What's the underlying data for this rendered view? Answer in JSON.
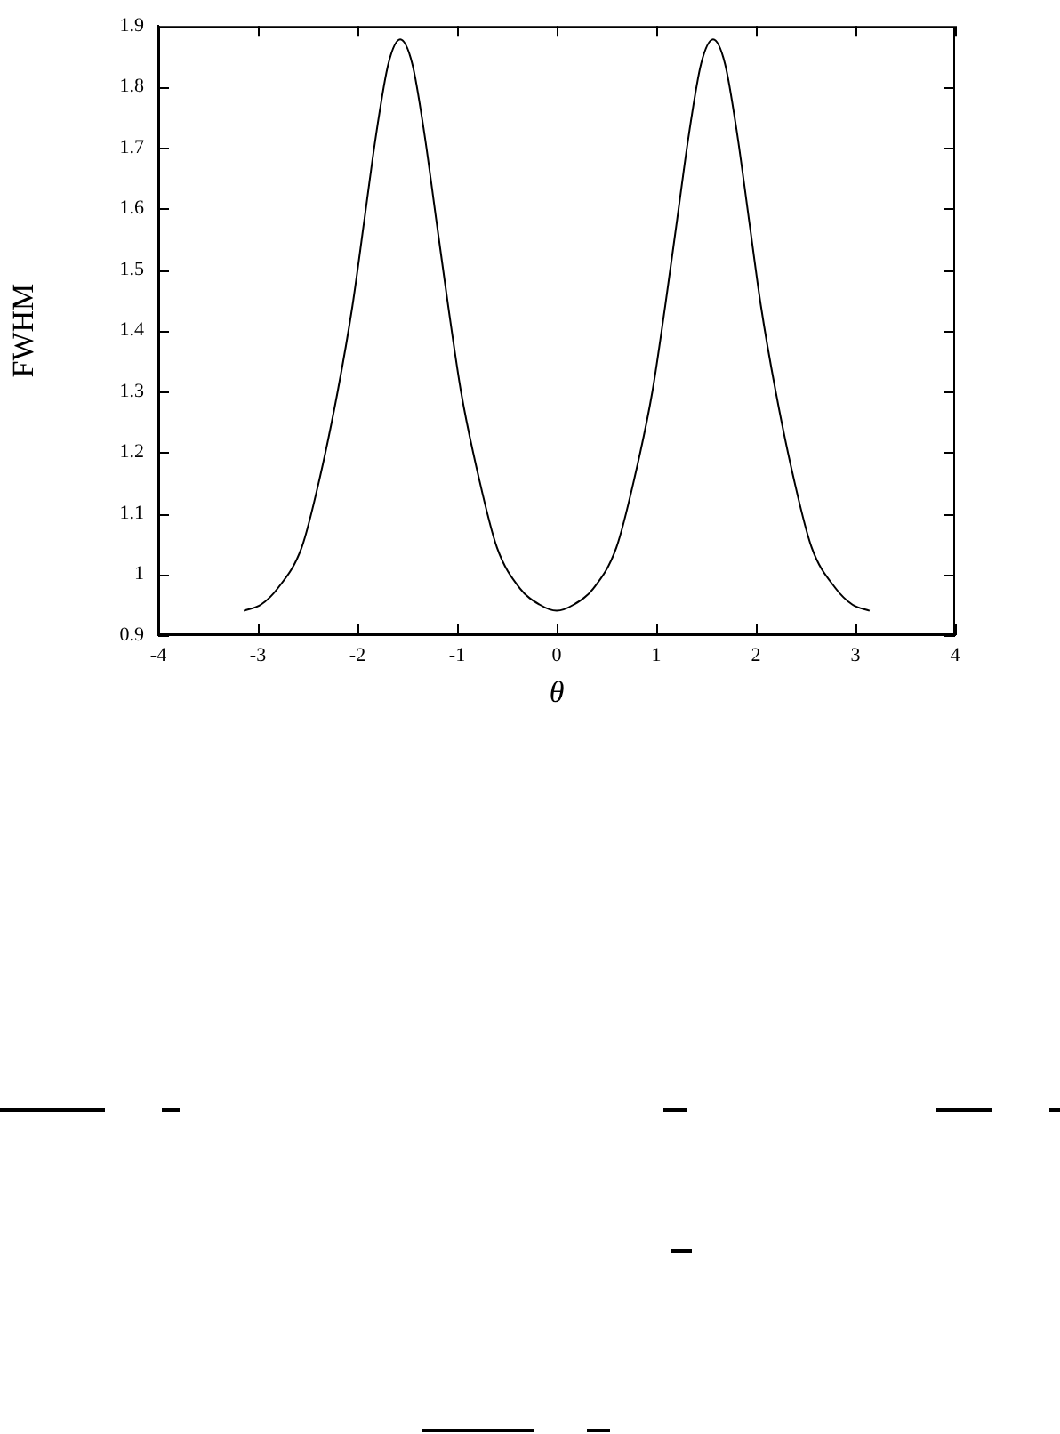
{
  "chart_data": {
    "type": "line",
    "xlabel": "θ",
    "ylabel": "FWHM",
    "xlim": [
      -4,
      4
    ],
    "xticks": [
      -4,
      -3,
      -2,
      -1,
      0,
      1,
      2,
      3,
      4
    ],
    "ylim": [
      0.9,
      1.9
    ],
    "yticks": [
      0.9,
      1,
      1.1,
      1.2,
      1.3,
      1.4,
      1.5,
      1.6,
      1.7,
      1.8,
      1.9
    ],
    "grid": false,
    "legend": false,
    "marker": "none",
    "line_style": "solid",
    "series": [
      {
        "color": "#000000",
        "x": [
          -3.1416,
          -2.97,
          -2.8,
          -2.56,
          -2.38,
          -2.2,
          -2.05,
          -1.93,
          -1.81,
          -1.69,
          -1.5708,
          -1.45,
          -1.33,
          -1.21,
          -1.09,
          -0.96,
          -0.78,
          -0.6,
          -0.37,
          -0.17,
          0,
          0.17,
          0.37,
          0.6,
          0.78,
          0.96,
          1.09,
          1.21,
          1.33,
          1.45,
          1.5708,
          1.69,
          1.81,
          1.93,
          2.05,
          2.2,
          2.38,
          2.56,
          2.8,
          2.97,
          3.1416
        ],
        "values": [
          0.94,
          0.95,
          0.977,
          1.044,
          1.157,
          1.299,
          1.441,
          1.583,
          1.725,
          1.838,
          1.878,
          1.838,
          1.725,
          1.583,
          1.441,
          1.299,
          1.157,
          1.044,
          0.977,
          0.95,
          0.94,
          0.95,
          0.977,
          1.044,
          1.157,
          1.299,
          1.441,
          1.583,
          1.725,
          1.838,
          1.878,
          1.838,
          1.725,
          1.583,
          1.441,
          1.299,
          1.157,
          1.044,
          0.977,
          0.95,
          0.94
        ]
      }
    ]
  }
}
